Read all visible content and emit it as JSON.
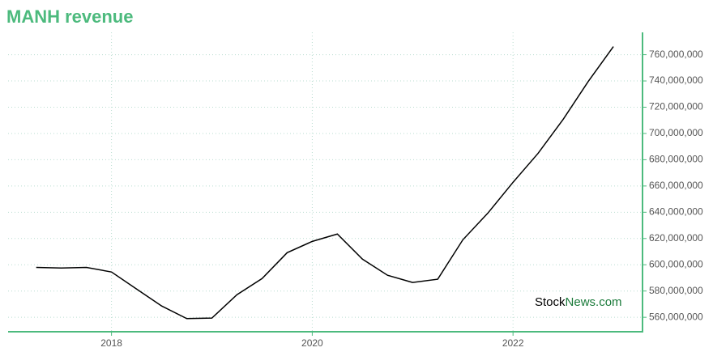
{
  "chart_data": {
    "type": "line",
    "title": "MANH revenue",
    "x": [
      2017.25,
      2017.5,
      2017.75,
      2018,
      2018.25,
      2018.5,
      2018.75,
      2019,
      2019.25,
      2019.5,
      2019.75,
      2020,
      2020.25,
      2020.5,
      2020.75,
      2021,
      2021.25,
      2021.5,
      2021.75,
      2022,
      2022.25,
      2022.5,
      2022.75,
      2023
    ],
    "series": [
      {
        "name": "revenue",
        "color": "#000000",
        "values": [
          598000000,
          597500000,
          598000000,
          594500000,
          581500000,
          568600000,
          559000000,
          559400000,
          577200000,
          589500000,
          609200000,
          617800000,
          623400000,
          604300000,
          592000000,
          586500000,
          589000000,
          619000000,
          639400000,
          662800000,
          684900000,
          710800000,
          739700000,
          766200000
        ]
      }
    ],
    "xlim": [
      2016.97,
      2023.29
    ],
    "xticks": [
      2018,
      2020,
      2022
    ],
    "ylim": [
      549000000,
      777000000
    ],
    "yticks": [
      {
        "value": 560000000,
        "label": "560,000,000"
      },
      {
        "value": 580000000,
        "label": "580,000,000"
      },
      {
        "value": 600000000,
        "label": "600,000,000"
      },
      {
        "value": 620000000,
        "label": "620,000,000"
      },
      {
        "value": 640000000,
        "label": "640,000,000"
      },
      {
        "value": 660000000,
        "label": "660,000,000"
      },
      {
        "value": 680000000,
        "label": "680,000,000"
      },
      {
        "value": 700000000,
        "label": "700,000,000"
      },
      {
        "value": 720000000,
        "label": "720,000,000"
      },
      {
        "value": 740000000,
        "label": "740,000,000"
      },
      {
        "value": 760000000,
        "label": "760,000,000"
      }
    ],
    "grid": true,
    "axis_color": "#4cba7d",
    "watermark": [
      "Stock",
      "News.com"
    ]
  }
}
